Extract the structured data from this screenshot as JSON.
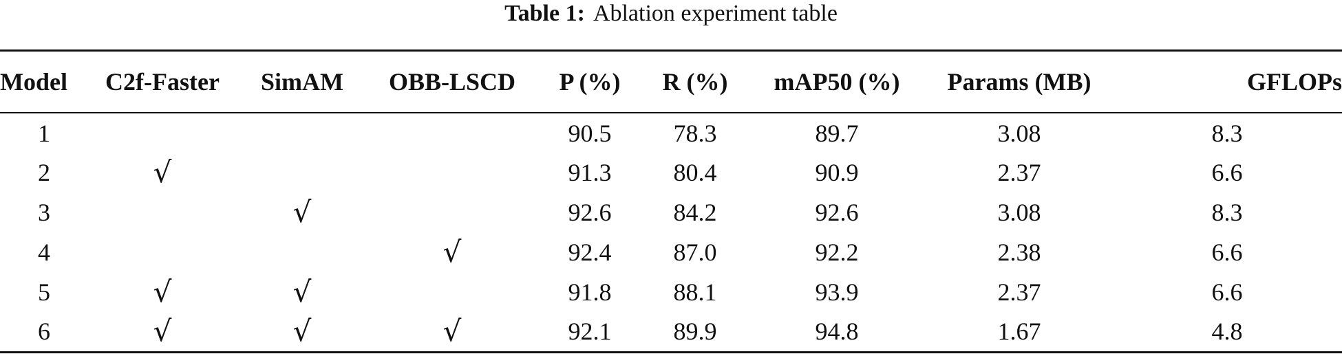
{
  "caption": {
    "label": "Table 1",
    "separator": ":",
    "text": "Ablation experiment table"
  },
  "table": {
    "headers": [
      "Model",
      "C2f-Faster",
      "SimAM",
      "OBB-LSCD",
      "P (%)",
      "R (%)",
      "mAP50 (%)",
      "Params (MB)",
      "GFLOPs"
    ],
    "check_mark": "√",
    "rows": [
      [
        "1",
        "",
        "",
        "",
        "90.5",
        "78.3",
        "89.7",
        "3.08",
        "8.3"
      ],
      [
        "2",
        "√",
        "",
        "",
        "91.3",
        "80.4",
        "90.9",
        "2.37",
        "6.6"
      ],
      [
        "3",
        "",
        "√",
        "",
        "92.6",
        "84.2",
        "92.6",
        "3.08",
        "8.3"
      ],
      [
        "4",
        "",
        "",
        "√",
        "92.4",
        "87.0",
        "92.2",
        "2.38",
        "6.6"
      ],
      [
        "5",
        "√",
        "√",
        "",
        "91.8",
        "88.1",
        "93.9",
        "2.37",
        "6.6"
      ],
      [
        "6",
        "√",
        "√",
        "√",
        "92.1",
        "89.9",
        "94.8",
        "1.67",
        "4.8"
      ]
    ]
  }
}
